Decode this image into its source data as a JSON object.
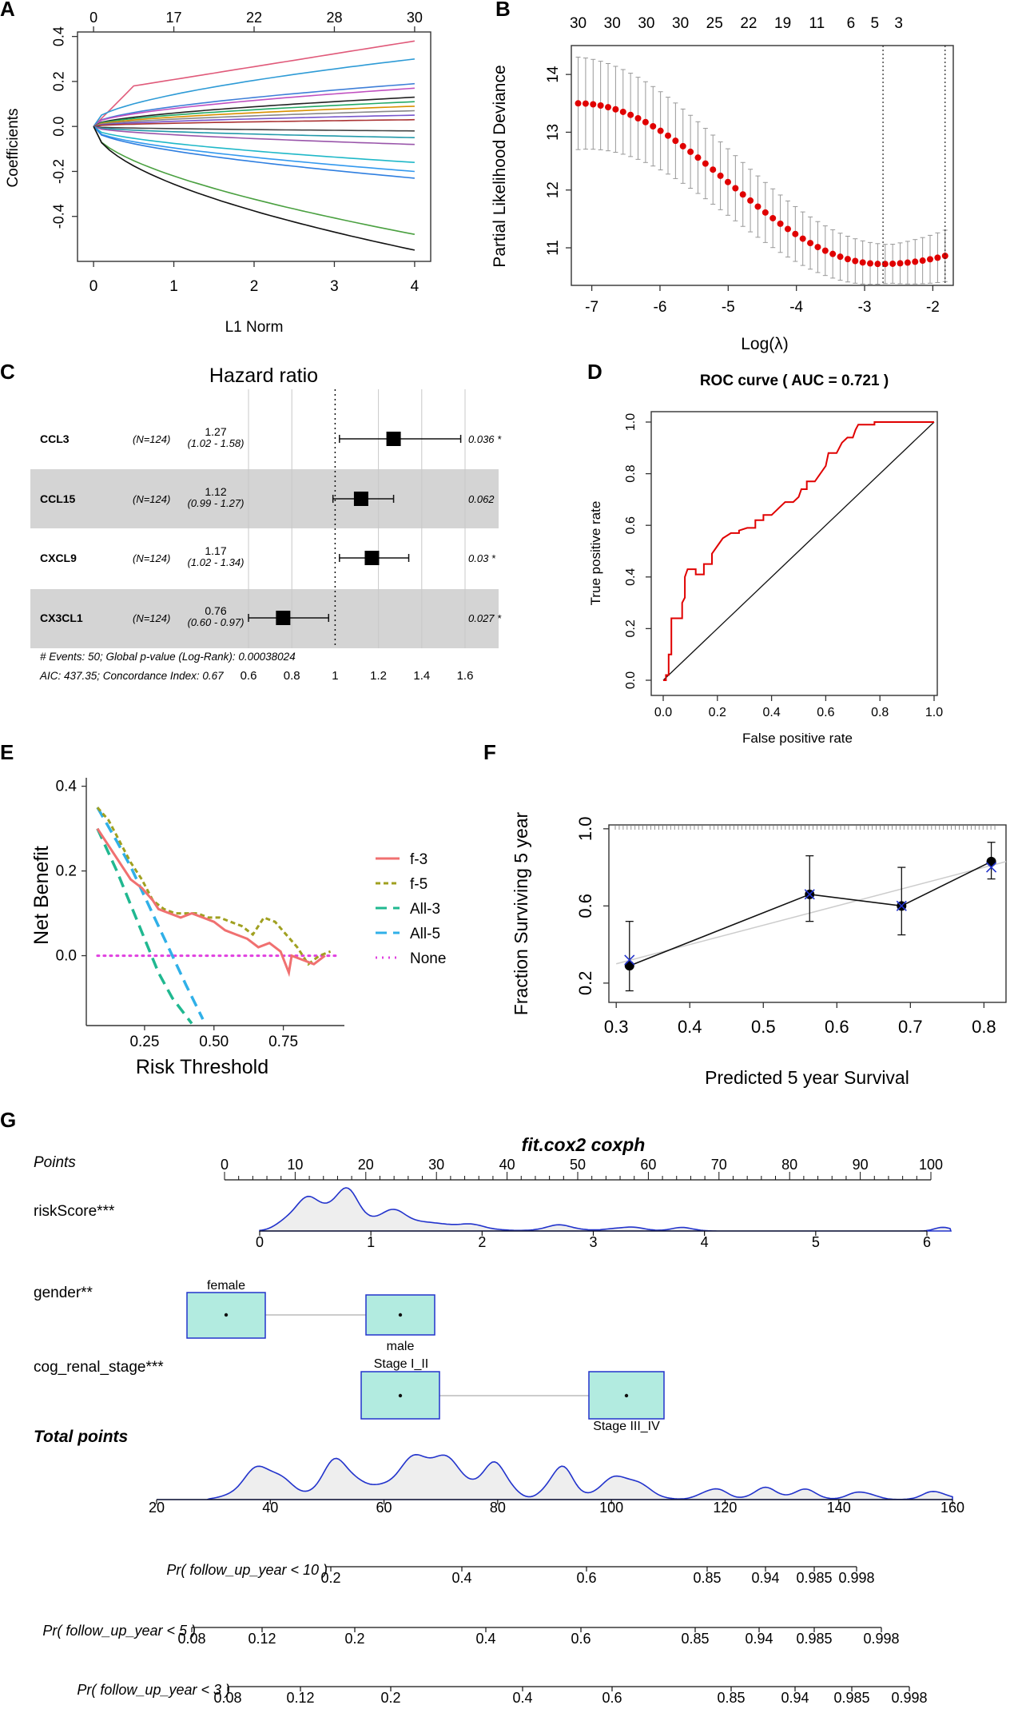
{
  "figure": {
    "background": "#ffffff"
  },
  "panels": {
    "A": {
      "letter": "A"
    },
    "B": {
      "letter": "B"
    },
    "C": {
      "letter": "C"
    },
    "D": {
      "letter": "D"
    },
    "E": {
      "letter": "E"
    },
    "F": {
      "letter": "F"
    },
    "G": {
      "letter": "G"
    }
  },
  "chart_data": [
    {
      "id": "A",
      "type": "line",
      "title": "",
      "xlabel": "L1 Norm",
      "ylabel": "Coefficients",
      "xlim": [
        -0.2,
        4.2
      ],
      "ylim": [
        -0.6,
        0.42
      ],
      "xticks": [
        "0",
        "1",
        "2",
        "3",
        "4"
      ],
      "yticks": [
        "-0.4",
        "-0.2",
        "0.0",
        "0.2",
        "0.4"
      ],
      "top_ticks": [
        "0",
        "17",
        "22",
        "28",
        "30"
      ],
      "top_tick_positions": [
        0,
        1,
        2,
        3,
        4
      ],
      "series": [
        {
          "name": "s1",
          "color": "#e05a7a",
          "start": 0.1,
          "end": 0.38
        },
        {
          "name": "s2",
          "color": "#2e9bd6",
          "start": 0.02,
          "end": 0.3
        },
        {
          "name": "s3",
          "color": "#3f7fd8",
          "start": 0.01,
          "end": 0.19
        },
        {
          "name": "s4",
          "color": "#c050c0",
          "start": 0.01,
          "end": 0.17
        },
        {
          "name": "s5",
          "color": "#222222",
          "start": 0.005,
          "end": 0.13
        },
        {
          "name": "s6",
          "color": "#22aa66",
          "start": 0.005,
          "end": 0.11
        },
        {
          "name": "s7",
          "color": "#d99000",
          "start": 0.004,
          "end": 0.09
        },
        {
          "name": "s8",
          "color": "#888888",
          "start": 0.003,
          "end": 0.07
        },
        {
          "name": "s9",
          "color": "#7755cc",
          "start": 0.002,
          "end": 0.05
        },
        {
          "name": "s10",
          "color": "#aa3333",
          "start": 0.002,
          "end": 0.03
        },
        {
          "name": "s11",
          "color": "#444444",
          "start": -0.002,
          "end": -0.02
        },
        {
          "name": "s12",
          "color": "#2299aa",
          "start": -0.003,
          "end": -0.05
        },
        {
          "name": "s13",
          "color": "#9955aa",
          "start": -0.004,
          "end": -0.08
        },
        {
          "name": "s14",
          "color": "#1fb8c8",
          "start": -0.01,
          "end": -0.16
        },
        {
          "name": "s15",
          "color": "#3399ee",
          "start": -0.015,
          "end": -0.2
        },
        {
          "name": "s16",
          "color": "#2f7fe0",
          "start": -0.015,
          "end": -0.23
        },
        {
          "name": "s17",
          "color": "#4aa040",
          "start": -0.02,
          "end": -0.48
        },
        {
          "name": "s18",
          "color": "#111111",
          "start": -0.05,
          "end": -0.55
        }
      ]
    },
    {
      "id": "B",
      "type": "scatter",
      "title": "",
      "xlabel": "Log(λ)",
      "ylabel": "Partial Likelihood Deviance",
      "xlim": [
        -7.3,
        -1.7
      ],
      "ylim": [
        10.35,
        14.5
      ],
      "xticks": [
        "-7",
        "-6",
        "-5",
        "-4",
        "-3",
        "-2"
      ],
      "yticks": [
        "11",
        "12",
        "13",
        "14"
      ],
      "top_ticks": [
        "30",
        "30",
        "30",
        "30",
        "25",
        "22",
        "19",
        "11",
        "6",
        "5",
        "3"
      ],
      "top_tick_positions": [
        -7.2,
        -6.7,
        -6.2,
        -5.7,
        -5.2,
        -4.7,
        -4.2,
        -3.7,
        -3.2,
        -2.85,
        -2.5
      ],
      "vlines": [
        -2.73,
        -1.82
      ],
      "x_from": -7.2,
      "x_to": -1.82,
      "n_points": 50,
      "deviance_start": 13.5,
      "deviance_min": 10.72,
      "deviance_min_at": -2.75,
      "deviance_end": 10.86,
      "point_color": "#e00000",
      "error_color": "#999999"
    },
    {
      "id": "C",
      "type": "forest",
      "title": "Hazard ratio",
      "xlabel": "",
      "xticks": [
        "0.6",
        "0.8",
        "1",
        "1.2",
        "1.4",
        "1.6"
      ],
      "xlim": [
        0.5,
        1.75
      ],
      "rows": [
        {
          "label": "CCL3",
          "n": "(N=124)",
          "hr": 1.27,
          "hr_text": "1.27",
          "ci_text": "(1.02 - 1.58)",
          "lo": 1.02,
          "hi": 1.58,
          "p": "0.036 *",
          "shaded": false
        },
        {
          "label": "CCL15",
          "n": "(N=124)",
          "hr": 1.12,
          "hr_text": "1.12",
          "ci_text": "(0.99 - 1.27)",
          "lo": 0.99,
          "hi": 1.27,
          "p": "0.062",
          "shaded": true
        },
        {
          "label": "CXCL9",
          "n": "(N=124)",
          "hr": 1.17,
          "hr_text": "1.17",
          "ci_text": "(1.02 - 1.34)",
          "lo": 1.02,
          "hi": 1.34,
          "p": "0.03 *",
          "shaded": false
        },
        {
          "label": "CX3CL1",
          "n": "(N=124)",
          "hr": 0.76,
          "hr_text": "0.76",
          "ci_text": "(0.60 - 0.97)",
          "lo": 0.6,
          "hi": 0.97,
          "p": "0.027 *",
          "shaded": true
        }
      ],
      "footer1": "# Events: 50; Global p-value (Log-Rank): 0.00038024",
      "footer2": "AIC: 437.35; Concordance Index: 0.67"
    },
    {
      "id": "D",
      "type": "line",
      "title": "ROC curve ( AUC =  0.721 )",
      "xlabel": "False positive rate",
      "ylabel": "True positive rate",
      "xlim": [
        0,
        1
      ],
      "ylim": [
        0,
        1
      ],
      "xticks": [
        "0.0",
        "0.2",
        "0.4",
        "0.6",
        "0.8",
        "1.0"
      ],
      "yticks": [
        "0.0",
        "0.2",
        "0.4",
        "0.6",
        "0.8",
        "1.0"
      ],
      "roc": [
        [
          0,
          0
        ],
        [
          0.01,
          0
        ],
        [
          0.01,
          0.02
        ],
        [
          0.02,
          0.02
        ],
        [
          0.02,
          0.1
        ],
        [
          0.03,
          0.1
        ],
        [
          0.03,
          0.24
        ],
        [
          0.07,
          0.24
        ],
        [
          0.07,
          0.3
        ],
        [
          0.08,
          0.32
        ],
        [
          0.08,
          0.4
        ],
        [
          0.09,
          0.43
        ],
        [
          0.12,
          0.43
        ],
        [
          0.12,
          0.41
        ],
        [
          0.15,
          0.41
        ],
        [
          0.15,
          0.45
        ],
        [
          0.18,
          0.45
        ],
        [
          0.18,
          0.49
        ],
        [
          0.2,
          0.52
        ],
        [
          0.22,
          0.55
        ],
        [
          0.25,
          0.57
        ],
        [
          0.28,
          0.57
        ],
        [
          0.28,
          0.58
        ],
        [
          0.31,
          0.59
        ],
        [
          0.34,
          0.59
        ],
        [
          0.34,
          0.62
        ],
        [
          0.37,
          0.62
        ],
        [
          0.37,
          0.64
        ],
        [
          0.4,
          0.64
        ],
        [
          0.42,
          0.66
        ],
        [
          0.45,
          0.69
        ],
        [
          0.48,
          0.69
        ],
        [
          0.5,
          0.71
        ],
        [
          0.51,
          0.74
        ],
        [
          0.53,
          0.74
        ],
        [
          0.53,
          0.77
        ],
        [
          0.56,
          0.77
        ],
        [
          0.58,
          0.8
        ],
        [
          0.6,
          0.83
        ],
        [
          0.61,
          0.88
        ],
        [
          0.64,
          0.88
        ],
        [
          0.66,
          0.92
        ],
        [
          0.68,
          0.94
        ],
        [
          0.7,
          0.94
        ],
        [
          0.71,
          0.97
        ],
        [
          0.72,
          0.99
        ],
        [
          0.78,
          0.99
        ],
        [
          0.78,
          1.0
        ],
        [
          0.8,
          1.0
        ],
        [
          1.0,
          1.0
        ]
      ],
      "roc_color": "#e00000"
    },
    {
      "id": "E",
      "type": "line",
      "title": "",
      "xlabel": "Risk Threshold",
      "ylabel": "Net Benefit",
      "xlim": [
        0.04,
        0.97
      ],
      "ylim": [
        -0.165,
        0.42
      ],
      "xticks": [
        "0.25",
        "0.50",
        "0.75"
      ],
      "yticks": [
        "0.0",
        "0.2",
        "0.4"
      ],
      "legend": [
        {
          "label": "f-3",
          "color": "#f07070",
          "dash": ""
        },
        {
          "label": "f-5",
          "color": "#a0a020",
          "dash": "6,4"
        },
        {
          "label": "All-3",
          "color": "#20b890",
          "dash": "14,8"
        },
        {
          "label": "All-5",
          "color": "#30b0e8",
          "dash": "14,8"
        },
        {
          "label": "None",
          "color": "#e040e0",
          "dash": "2,6"
        }
      ],
      "f3": [
        [
          0.08,
          0.3
        ],
        [
          0.12,
          0.26
        ],
        [
          0.16,
          0.22
        ],
        [
          0.2,
          0.18
        ],
        [
          0.24,
          0.16
        ],
        [
          0.28,
          0.13
        ],
        [
          0.3,
          0.11
        ],
        [
          0.34,
          0.1
        ],
        [
          0.38,
          0.09
        ],
        [
          0.42,
          0.1
        ],
        [
          0.46,
          0.09
        ],
        [
          0.5,
          0.08
        ],
        [
          0.54,
          0.06
        ],
        [
          0.58,
          0.05
        ],
        [
          0.62,
          0.04
        ],
        [
          0.66,
          0.02
        ],
        [
          0.7,
          0.03
        ],
        [
          0.74,
          0.01
        ],
        [
          0.77,
          -0.04
        ],
        [
          0.78,
          0.0
        ],
        [
          0.82,
          -0.01
        ],
        [
          0.86,
          -0.02
        ],
        [
          0.9,
          0.0
        ]
      ],
      "f5": [
        [
          0.08,
          0.35
        ],
        [
          0.12,
          0.32
        ],
        [
          0.16,
          0.27
        ],
        [
          0.2,
          0.22
        ],
        [
          0.24,
          0.18
        ],
        [
          0.28,
          0.13
        ],
        [
          0.32,
          0.11
        ],
        [
          0.36,
          0.1
        ],
        [
          0.4,
          0.1
        ],
        [
          0.44,
          0.1
        ],
        [
          0.48,
          0.09
        ],
        [
          0.52,
          0.09
        ],
        [
          0.56,
          0.08
        ],
        [
          0.6,
          0.07
        ],
        [
          0.64,
          0.05
        ],
        [
          0.68,
          0.09
        ],
        [
          0.72,
          0.08
        ],
        [
          0.76,
          0.05
        ],
        [
          0.8,
          0.02
        ],
        [
          0.84,
          -0.02
        ],
        [
          0.88,
          0.0
        ],
        [
          0.92,
          0.01
        ]
      ],
      "all3": [
        [
          0.08,
          0.3
        ],
        [
          0.15,
          0.2
        ],
        [
          0.2,
          0.12
        ],
        [
          0.25,
          0.04
        ],
        [
          0.3,
          -0.04
        ],
        [
          0.35,
          -0.1
        ],
        [
          0.42,
          -0.16
        ]
      ],
      "all5": [
        [
          0.08,
          0.35
        ],
        [
          0.15,
          0.27
        ],
        [
          0.2,
          0.21
        ],
        [
          0.25,
          0.14
        ],
        [
          0.3,
          0.07
        ],
        [
          0.35,
          0.0
        ],
        [
          0.4,
          -0.07
        ],
        [
          0.46,
          -0.15
        ]
      ],
      "none": [
        [
          0.08,
          0.0
        ],
        [
          0.95,
          0.0
        ]
      ]
    },
    {
      "id": "F",
      "type": "scatter",
      "title": "",
      "xlabel": "Predicted  5 year Survival",
      "ylabel": "Fraction Surviving 5 year",
      "xlim": [
        0.29,
        0.83
      ],
      "ylim": [
        0.1,
        1.02
      ],
      "xticks": [
        "0.3",
        "0.4",
        "0.5",
        "0.6",
        "0.7",
        "0.8"
      ],
      "yticks": [
        "0.2",
        "0.6",
        "1.0"
      ],
      "points": [
        {
          "x": 0.318,
          "y": 0.29,
          "lo": 0.16,
          "hi": 0.52,
          "xpred": 0.318,
          "ypred": 0.32
        },
        {
          "x": 0.563,
          "y": 0.66,
          "lo": 0.52,
          "hi": 0.86,
          "xpred": 0.563,
          "ypred": 0.66
        },
        {
          "x": 0.688,
          "y": 0.6,
          "lo": 0.45,
          "hi": 0.8,
          "xpred": 0.688,
          "ypred": 0.6
        },
        {
          "x": 0.81,
          "y": 0.83,
          "lo": 0.74,
          "hi": 0.93,
          "xpred": 0.81,
          "ypred": 0.8
        }
      ],
      "ideal_color": "#cccccc"
    }
  ],
  "nomogram": {
    "title": "fit.cox2 coxph",
    "points_label": "Points",
    "points_ticks": [
      "0",
      "10",
      "20",
      "30",
      "40",
      "50",
      "60",
      "70",
      "80",
      "90",
      "100"
    ],
    "riskscore_label": "riskScore***",
    "riskscore_ticks": [
      "0",
      "1",
      "2",
      "3",
      "4",
      "5",
      "6"
    ],
    "gender_label": "gender**",
    "gender_levels": [
      "female",
      "male"
    ],
    "stage_label": "cog_renal_stage***",
    "stage_levels": [
      "Stage I_II",
      "Stage III_IV"
    ],
    "total_label": "Total points",
    "total_ticks": [
      "20",
      "40",
      "60",
      "80",
      "100",
      "120",
      "140",
      "160"
    ],
    "pr10_label": "Pr( follow_up_year < 10 )",
    "pr10_ticks": [
      "0.2",
      "0.4",
      "0.6",
      "0.85",
      "0.94",
      "0.985",
      "0.998"
    ],
    "pr5_label": "Pr( follow_up_year < 5 )",
    "pr5_ticks": [
      "0.08",
      "0.12",
      "0.2",
      "0.4",
      "0.6",
      "0.85",
      "0.94",
      "0.985",
      "0.998"
    ],
    "pr3_label": "Pr( follow_up_year < 3 )",
    "pr3_ticks": [
      "0.08",
      "0.12",
      "0.2",
      "0.4",
      "0.6",
      "0.85",
      "0.94",
      "0.985",
      "0.998"
    ],
    "box_fill": "#b2ebe0",
    "box_stroke": "#2233cc",
    "density_stroke": "#2233cc",
    "density_fill": "#eeeeee"
  }
}
